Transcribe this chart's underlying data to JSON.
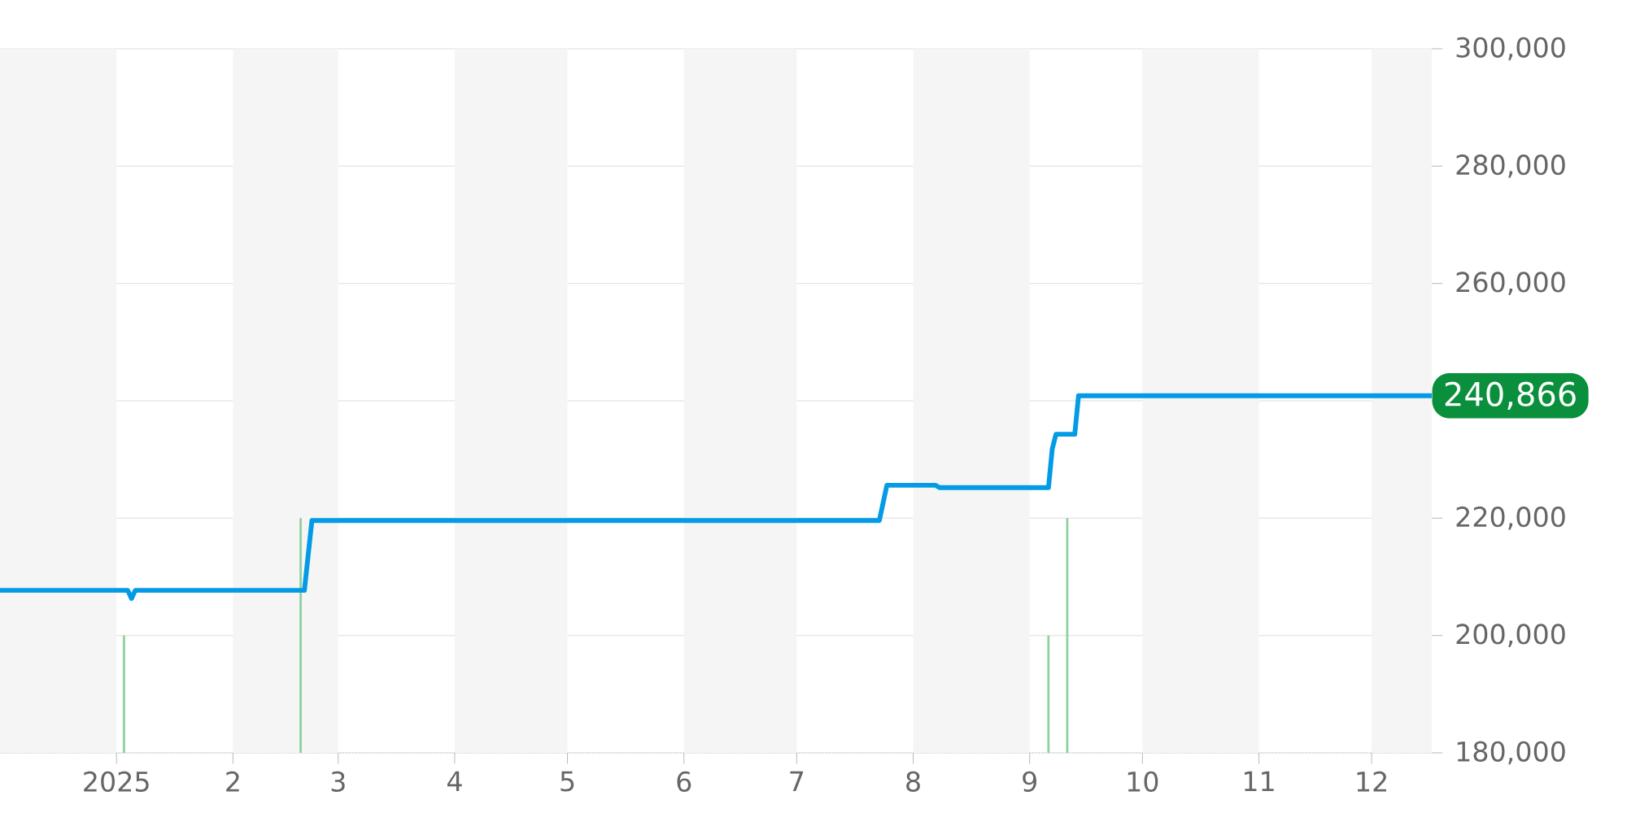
{
  "chart_data": {
    "type": "line",
    "xlim": [
      "2024-12-01",
      "2025-12-17"
    ],
    "xticks": [
      {
        "value": "2025-01-01",
        "label": "2025"
      },
      {
        "value": "2025-02-01",
        "label": "2"
      },
      {
        "value": "2025-03-01",
        "label": "3"
      },
      {
        "value": "2025-04-01",
        "label": "4"
      },
      {
        "value": "2025-05-01",
        "label": "5"
      },
      {
        "value": "2025-06-01",
        "label": "6"
      },
      {
        "value": "2025-07-01",
        "label": "7"
      },
      {
        "value": "2025-08-01",
        "label": "8"
      },
      {
        "value": "2025-09-01",
        "label": "9"
      },
      {
        "value": "2025-10-01",
        "label": "10"
      },
      {
        "value": "2025-11-01",
        "label": "11"
      },
      {
        "value": "2025-12-01",
        "label": "12"
      }
    ],
    "ylim": [
      180000,
      300000
    ],
    "yticks": [
      {
        "value": 180000,
        "label": "180,000"
      },
      {
        "value": 200000,
        "label": "200,000"
      },
      {
        "value": 220000,
        "label": "220,000"
      },
      {
        "value": 240000,
        "label": null
      },
      {
        "value": 260000,
        "label": "260,000"
      },
      {
        "value": 280000,
        "label": "280,000"
      },
      {
        "value": 300000,
        "label": "300,000"
      }
    ],
    "grid": "y",
    "marker": "none",
    "line_style": "solid",
    "series": [
      {
        "color": "#039be5",
        "x": [
          "2024-12-01",
          "2025-01-04",
          "2025-01-05",
          "2025-01-06",
          "2025-02-20",
          "2025-02-22",
          "2025-07-23",
          "2025-07-25",
          "2025-08-07",
          "2025-08-08",
          "2025-09-06",
          "2025-09-07",
          "2025-09-08",
          "2025-09-13",
          "2025-09-14",
          "2025-12-17"
        ],
        "values": [
          207700,
          207700,
          206300,
          207700,
          207700,
          219600,
          219600,
          225600,
          225600,
          225200,
          225200,
          231800,
          234300,
          234300,
          240866,
          240866
        ]
      },
      {
        "type": "bar",
        "color": "#8fd19e",
        "x": [
          "2025-01-03",
          "2025-02-19",
          "2025-09-06",
          "2025-09-11"
        ],
        "base": [
          180000,
          180000,
          180000,
          180000
        ],
        "values": [
          20000,
          40000,
          20000,
          40000
        ]
      }
    ],
    "bands": [
      {
        "axis": "x",
        "from": "2024-12-01",
        "to": "2025-01-01",
        "color": "#f5f5f5"
      },
      {
        "axis": "x",
        "from": "2025-02-01",
        "to": "2025-03-01",
        "color": "#f5f5f5"
      },
      {
        "axis": "x",
        "from": "2025-04-01",
        "to": "2025-05-01",
        "color": "#f5f5f5"
      },
      {
        "axis": "x",
        "from": "2025-06-01",
        "to": "2025-07-01",
        "color": "#f5f5f5"
      },
      {
        "axis": "x",
        "from": "2025-08-01",
        "to": "2025-09-01",
        "color": "#f5f5f5"
      },
      {
        "axis": "x",
        "from": "2025-10-01",
        "to": "2025-11-01",
        "color": "#f5f5f5"
      },
      {
        "axis": "x",
        "from": "2025-12-01",
        "to": "2025-12-17",
        "color": "#f5f5f5"
      }
    ],
    "annotations": [
      {
        "text": "240,866",
        "x": "2025-12-17",
        "y": 240866
      }
    ]
  }
}
